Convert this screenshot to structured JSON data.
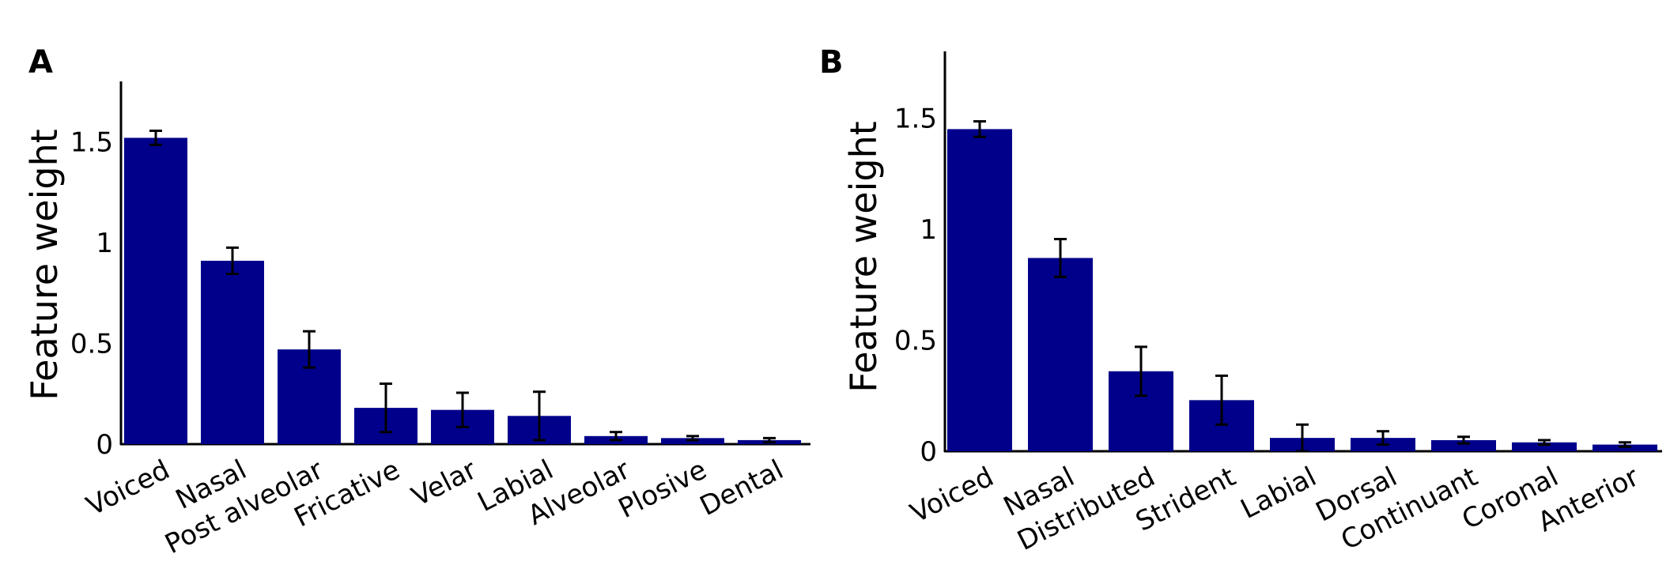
{
  "colors": {
    "bar": "#00008B",
    "axis": "#000000",
    "errorbar": "#000000"
  },
  "chart_data": [
    {
      "type": "bar",
      "panel_label": "A",
      "ylabel": "Feature weight",
      "ylim": [
        0,
        1.8
      ],
      "yticks": [
        0,
        0.5,
        1,
        1.5
      ],
      "ytick_labels": [
        "0",
        "0.5",
        "1",
        "1.5"
      ],
      "categories": [
        "Voiced",
        "Nasal",
        "Post alveolar",
        "Fricative",
        "Velar",
        "Labial",
        "Alveolar",
        "Plosive",
        "Dental"
      ],
      "values": [
        1.52,
        0.91,
        0.47,
        0.18,
        0.17,
        0.14,
        0.04,
        0.03,
        0.02
      ],
      "error": [
        0.035,
        0.065,
        0.09,
        0.12,
        0.085,
        0.12,
        0.02,
        0.01,
        0.01
      ],
      "grid": false
    },
    {
      "type": "bar",
      "panel_label": "B",
      "ylabel": "Feature weight",
      "ylim": [
        0,
        1.8
      ],
      "yticks": [
        0,
        0.5,
        1,
        1.5
      ],
      "ytick_labels": [
        "0",
        "0.5",
        "1",
        "1.5"
      ],
      "categories": [
        "Voiced",
        "Nasal",
        "Distributed",
        "Strident",
        "Labial",
        "Dorsal",
        "Continuant",
        "Coronal",
        "Anterior"
      ],
      "values": [
        1.45,
        0.87,
        0.36,
        0.23,
        0.06,
        0.06,
        0.05,
        0.04,
        0.03
      ],
      "error": [
        0.035,
        0.085,
        0.11,
        0.11,
        0.06,
        0.03,
        0.015,
        0.01,
        0.01
      ],
      "grid": false
    }
  ]
}
